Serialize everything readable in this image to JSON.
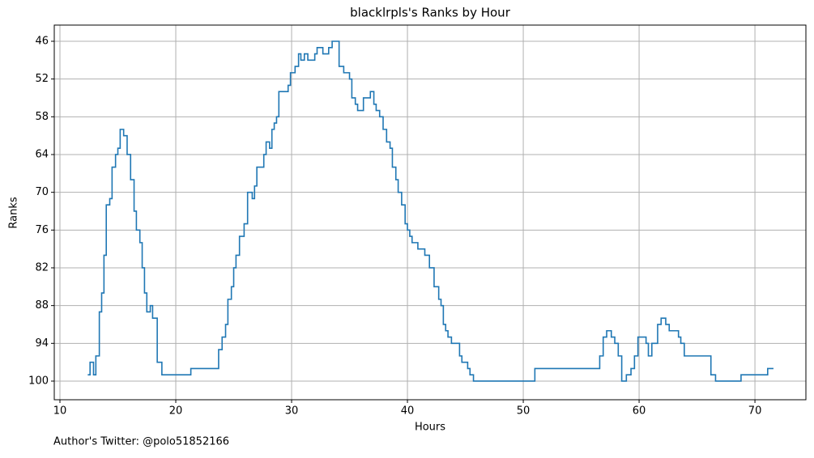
{
  "chart_data": {
    "type": "step",
    "title": "blacklrpls's Ranks by Hour",
    "xlabel": "Hours",
    "ylabel": "Ranks",
    "footnote": "Author's Twitter: @polo51852166",
    "x": [
      12.4,
      12.6,
      12.9,
      13.1,
      13.4,
      13.6,
      13.8,
      14.0,
      14.3,
      14.5,
      14.8,
      15.0,
      15.2,
      15.5,
      15.8,
      16.1,
      16.4,
      16.6,
      16.9,
      17.1,
      17.3,
      17.5,
      17.8,
      18.0,
      18.4,
      18.8,
      21.3,
      23.7,
      24.0,
      24.3,
      24.5,
      24.8,
      25.0,
      25.2,
      25.5,
      25.9,
      26.2,
      26.6,
      26.8,
      27.0,
      27.6,
      27.8,
      28.1,
      28.3,
      28.5,
      28.7,
      28.9,
      29.7,
      29.9,
      30.3,
      30.6,
      30.8,
      31.1,
      31.4,
      32.0,
      32.2,
      32.7,
      33.2,
      33.5,
      34.1,
      34.5,
      35.0,
      35.2,
      35.5,
      35.7,
      36.2,
      36.8,
      37.1,
      37.3,
      37.6,
      37.9,
      38.2,
      38.5,
      38.7,
      39.0,
      39.2,
      39.5,
      39.8,
      40.0,
      40.2,
      40.4,
      40.9,
      41.5,
      41.9,
      42.3,
      42.7,
      42.9,
      43.1,
      43.3,
      43.5,
      43.8,
      44.5,
      44.7,
      45.2,
      45.4,
      45.7,
      51.0,
      56.6,
      56.9,
      57.2,
      57.6,
      57.9,
      58.2,
      58.5,
      58.9,
      59.3,
      59.6,
      59.9,
      60.6,
      60.8,
      61.1,
      61.6,
      61.9,
      62.3,
      62.6,
      63.4,
      63.6,
      63.9,
      66.2,
      66.6,
      68.8,
      71.1,
      71.6
    ],
    "values": [
      99,
      97,
      99,
      96,
      89,
      86,
      80,
      72,
      71,
      66,
      64,
      63,
      60,
      61,
      64,
      68,
      73,
      76,
      78,
      82,
      86,
      89,
      88,
      90,
      97,
      99,
      98,
      95,
      93,
      91,
      87,
      85,
      82,
      80,
      77,
      75,
      70,
      71,
      69,
      66,
      64,
      62,
      63,
      60,
      59,
      58,
      54,
      53,
      51,
      50,
      48,
      49,
      48,
      49,
      48,
      47,
      48,
      47,
      46,
      50,
      51,
      52,
      55,
      56,
      57,
      55,
      54,
      56,
      57,
      58,
      60,
      62,
      63,
      66,
      68,
      70,
      72,
      75,
      76,
      77,
      78,
      79,
      80,
      82,
      85,
      87,
      88,
      91,
      92,
      93,
      94,
      96,
      97,
      98,
      99,
      100,
      98,
      96,
      93,
      92,
      93,
      94,
      96,
      100,
      99,
      98,
      96,
      93,
      94,
      96,
      94,
      91,
      90,
      91,
      92,
      93,
      94,
      96,
      99,
      100,
      99,
      98,
      98
    ],
    "color": "#1f77b4",
    "xlim": [
      9.51,
      74.4
    ],
    "ylim": [
      102.96,
      43.43
    ],
    "xticks": [
      10,
      20,
      30,
      40,
      50,
      60,
      70
    ],
    "yticks": [
      46,
      52,
      58,
      64,
      70,
      76,
      82,
      88,
      94,
      100
    ],
    "grid": true
  }
}
